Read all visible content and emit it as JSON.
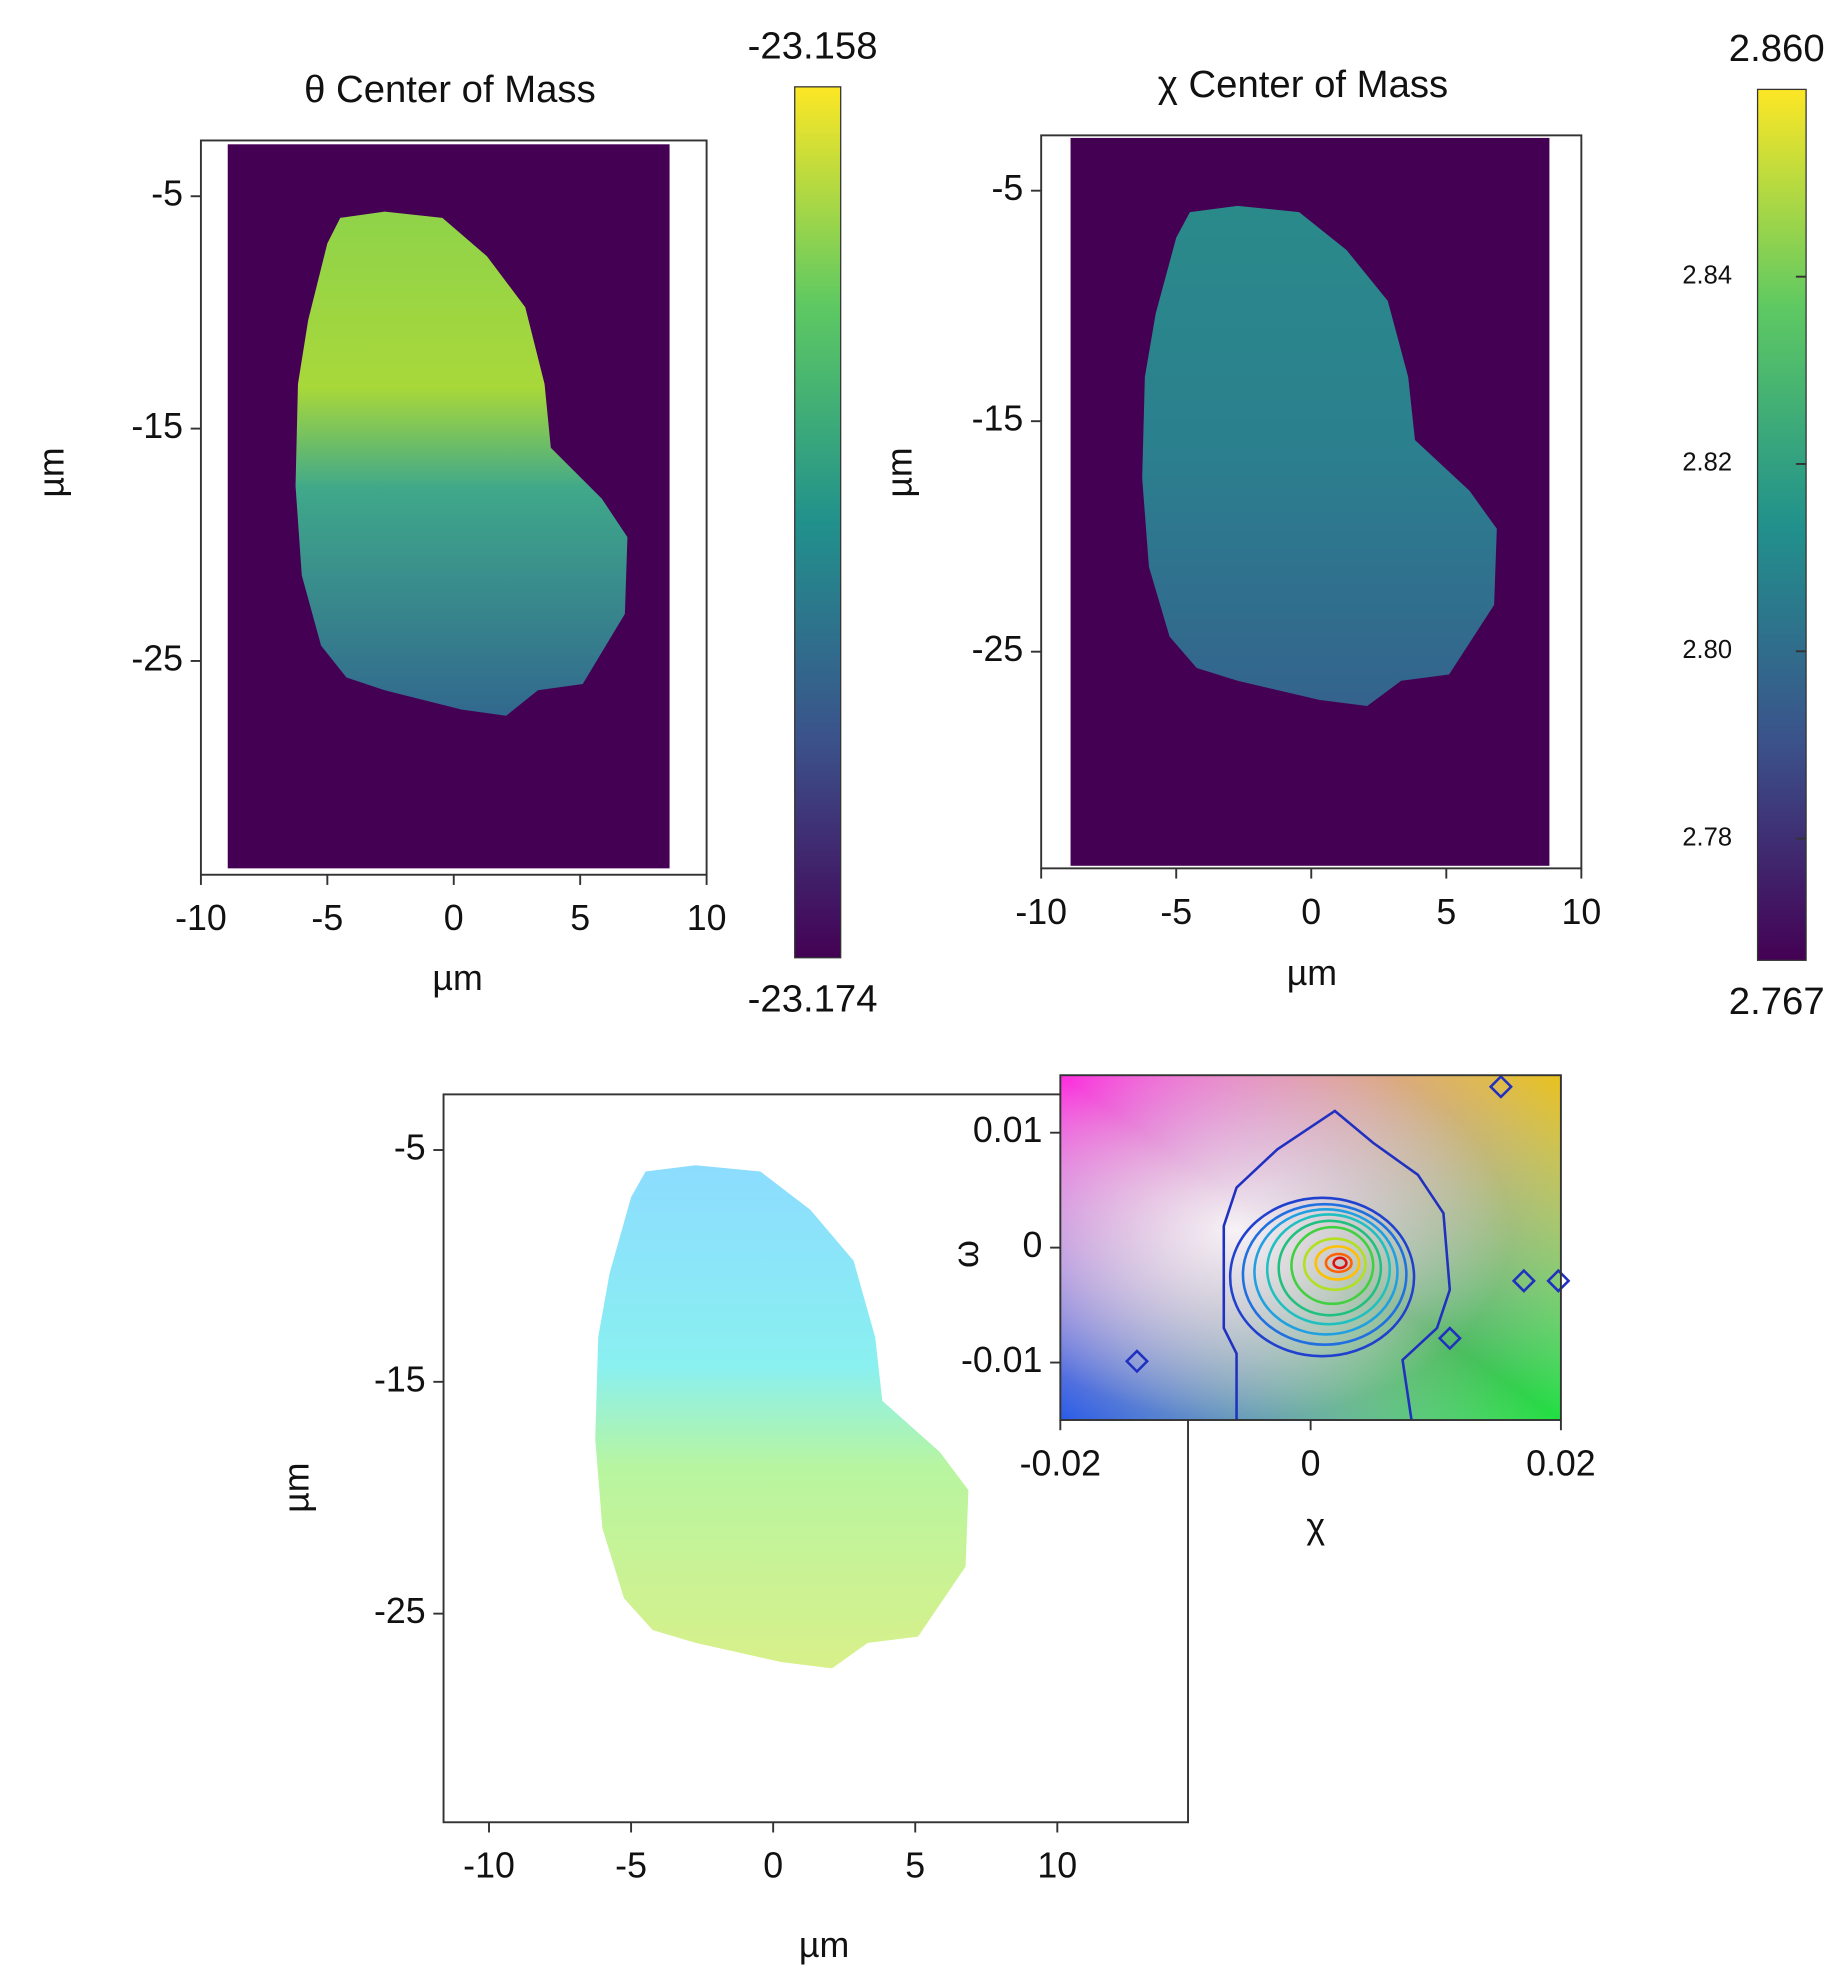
{
  "chart_data": [
    {
      "type": "heatmap",
      "title": "θ Center of Mass",
      "xlabel": "µm",
      "ylabel": "µm",
      "xlim": [
        -10,
        10
      ],
      "xticks": [
        -10,
        -5,
        0,
        5,
        10
      ],
      "ylim": [
        -34.2,
        -2.6
      ],
      "yticks": [
        -5,
        -15,
        -25
      ],
      "colorbar": {
        "clim": [
          -23.174,
          -23.158
        ],
        "ticks": [
          -23.174,
          -23.158
        ]
      }
    },
    {
      "type": "heatmap",
      "title": "χ Center of Mass",
      "xlabel": "µm",
      "ylabel": "µm",
      "xlim": [
        -10,
        10
      ],
      "xticks": [
        -10,
        -5,
        0,
        5,
        10
      ],
      "ylim": [
        -34.4,
        -2.6
      ],
      "yticks": [
        -5,
        -15,
        -25
      ],
      "colorbar": {
        "clim": [
          2.767,
          2.86
        ],
        "ticks": [
          2.767,
          2.78,
          {
            "value": 2.8,
            "label": "2.80"
          },
          2.82,
          2.84,
          {
            "value": 2.86,
            "label": "2.860"
          }
        ]
      }
    },
    {
      "type": "heatmap",
      "xlabel": "µm",
      "ylabel": "µm",
      "xlim": [
        -11.6,
        14.6
      ],
      "xticks": [
        -10,
        -5,
        0,
        5,
        10
      ],
      "ylim": [
        -34.0,
        -2.6
      ],
      "yticks": [
        -5,
        -15,
        -25
      ]
    },
    {
      "type": "contour",
      "xlabel": "χ",
      "ylabel": "ω",
      "xlim": [
        -0.02,
        0.02
      ],
      "xticks": [
        -0.02,
        0,
        0.02
      ],
      "ylim": [
        -0.015,
        0.015
      ],
      "yticks": [
        -0.01,
        0,
        0.01
      ]
    }
  ]
}
